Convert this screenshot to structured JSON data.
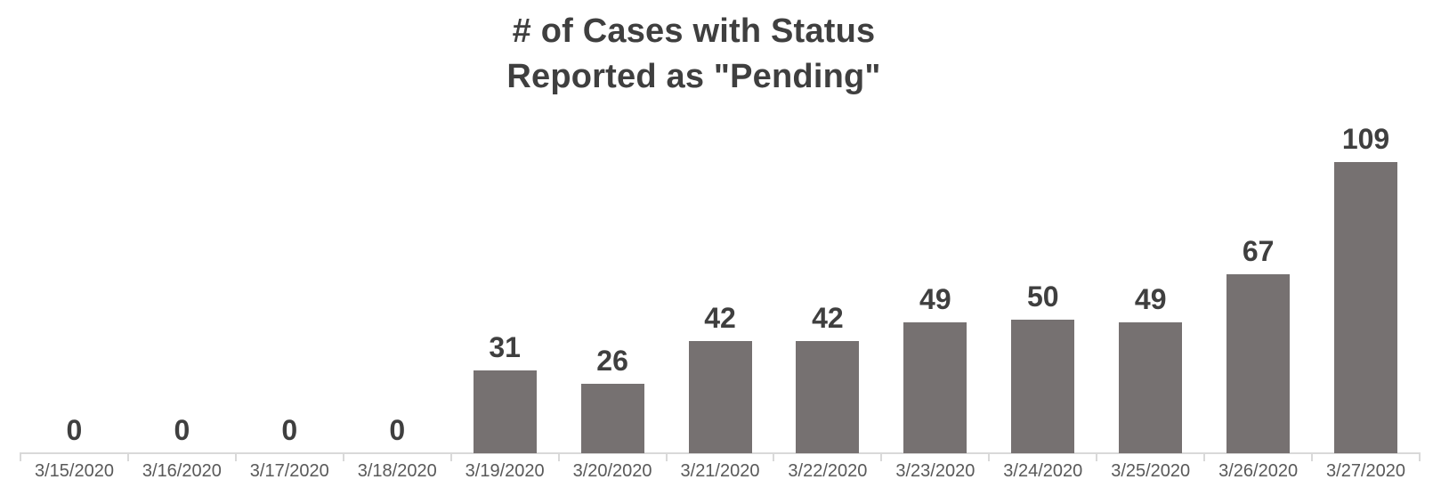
{
  "chart_data": {
    "type": "bar",
    "title": "# of Cases with Status\nReported as \"Pending\"",
    "title_lines": [
      "# of Cases with Status",
      "Reported as \"Pending\""
    ],
    "categories": [
      "3/15/2020",
      "3/16/2020",
      "3/17/2020",
      "3/18/2020",
      "3/19/2020",
      "3/20/2020",
      "3/21/2020",
      "3/22/2020",
      "3/23/2020",
      "3/24/2020",
      "3/25/2020",
      "3/26/2020",
      "3/27/2020"
    ],
    "values": [
      0,
      0,
      0,
      0,
      31,
      26,
      42,
      42,
      49,
      50,
      49,
      67,
      109
    ],
    "xlabel": "",
    "ylabel": "",
    "ylim": [
      0,
      115
    ],
    "grid": false,
    "legend": "none",
    "data_labels": true,
    "y_axis_visible": false,
    "colors": {
      "bar": "#767171",
      "title": "#3f3f3f",
      "value_label": "#3f3f3f",
      "axis_line": "#d9d9d9",
      "tick_label": "#595959",
      "background": "#ffffff"
    }
  }
}
